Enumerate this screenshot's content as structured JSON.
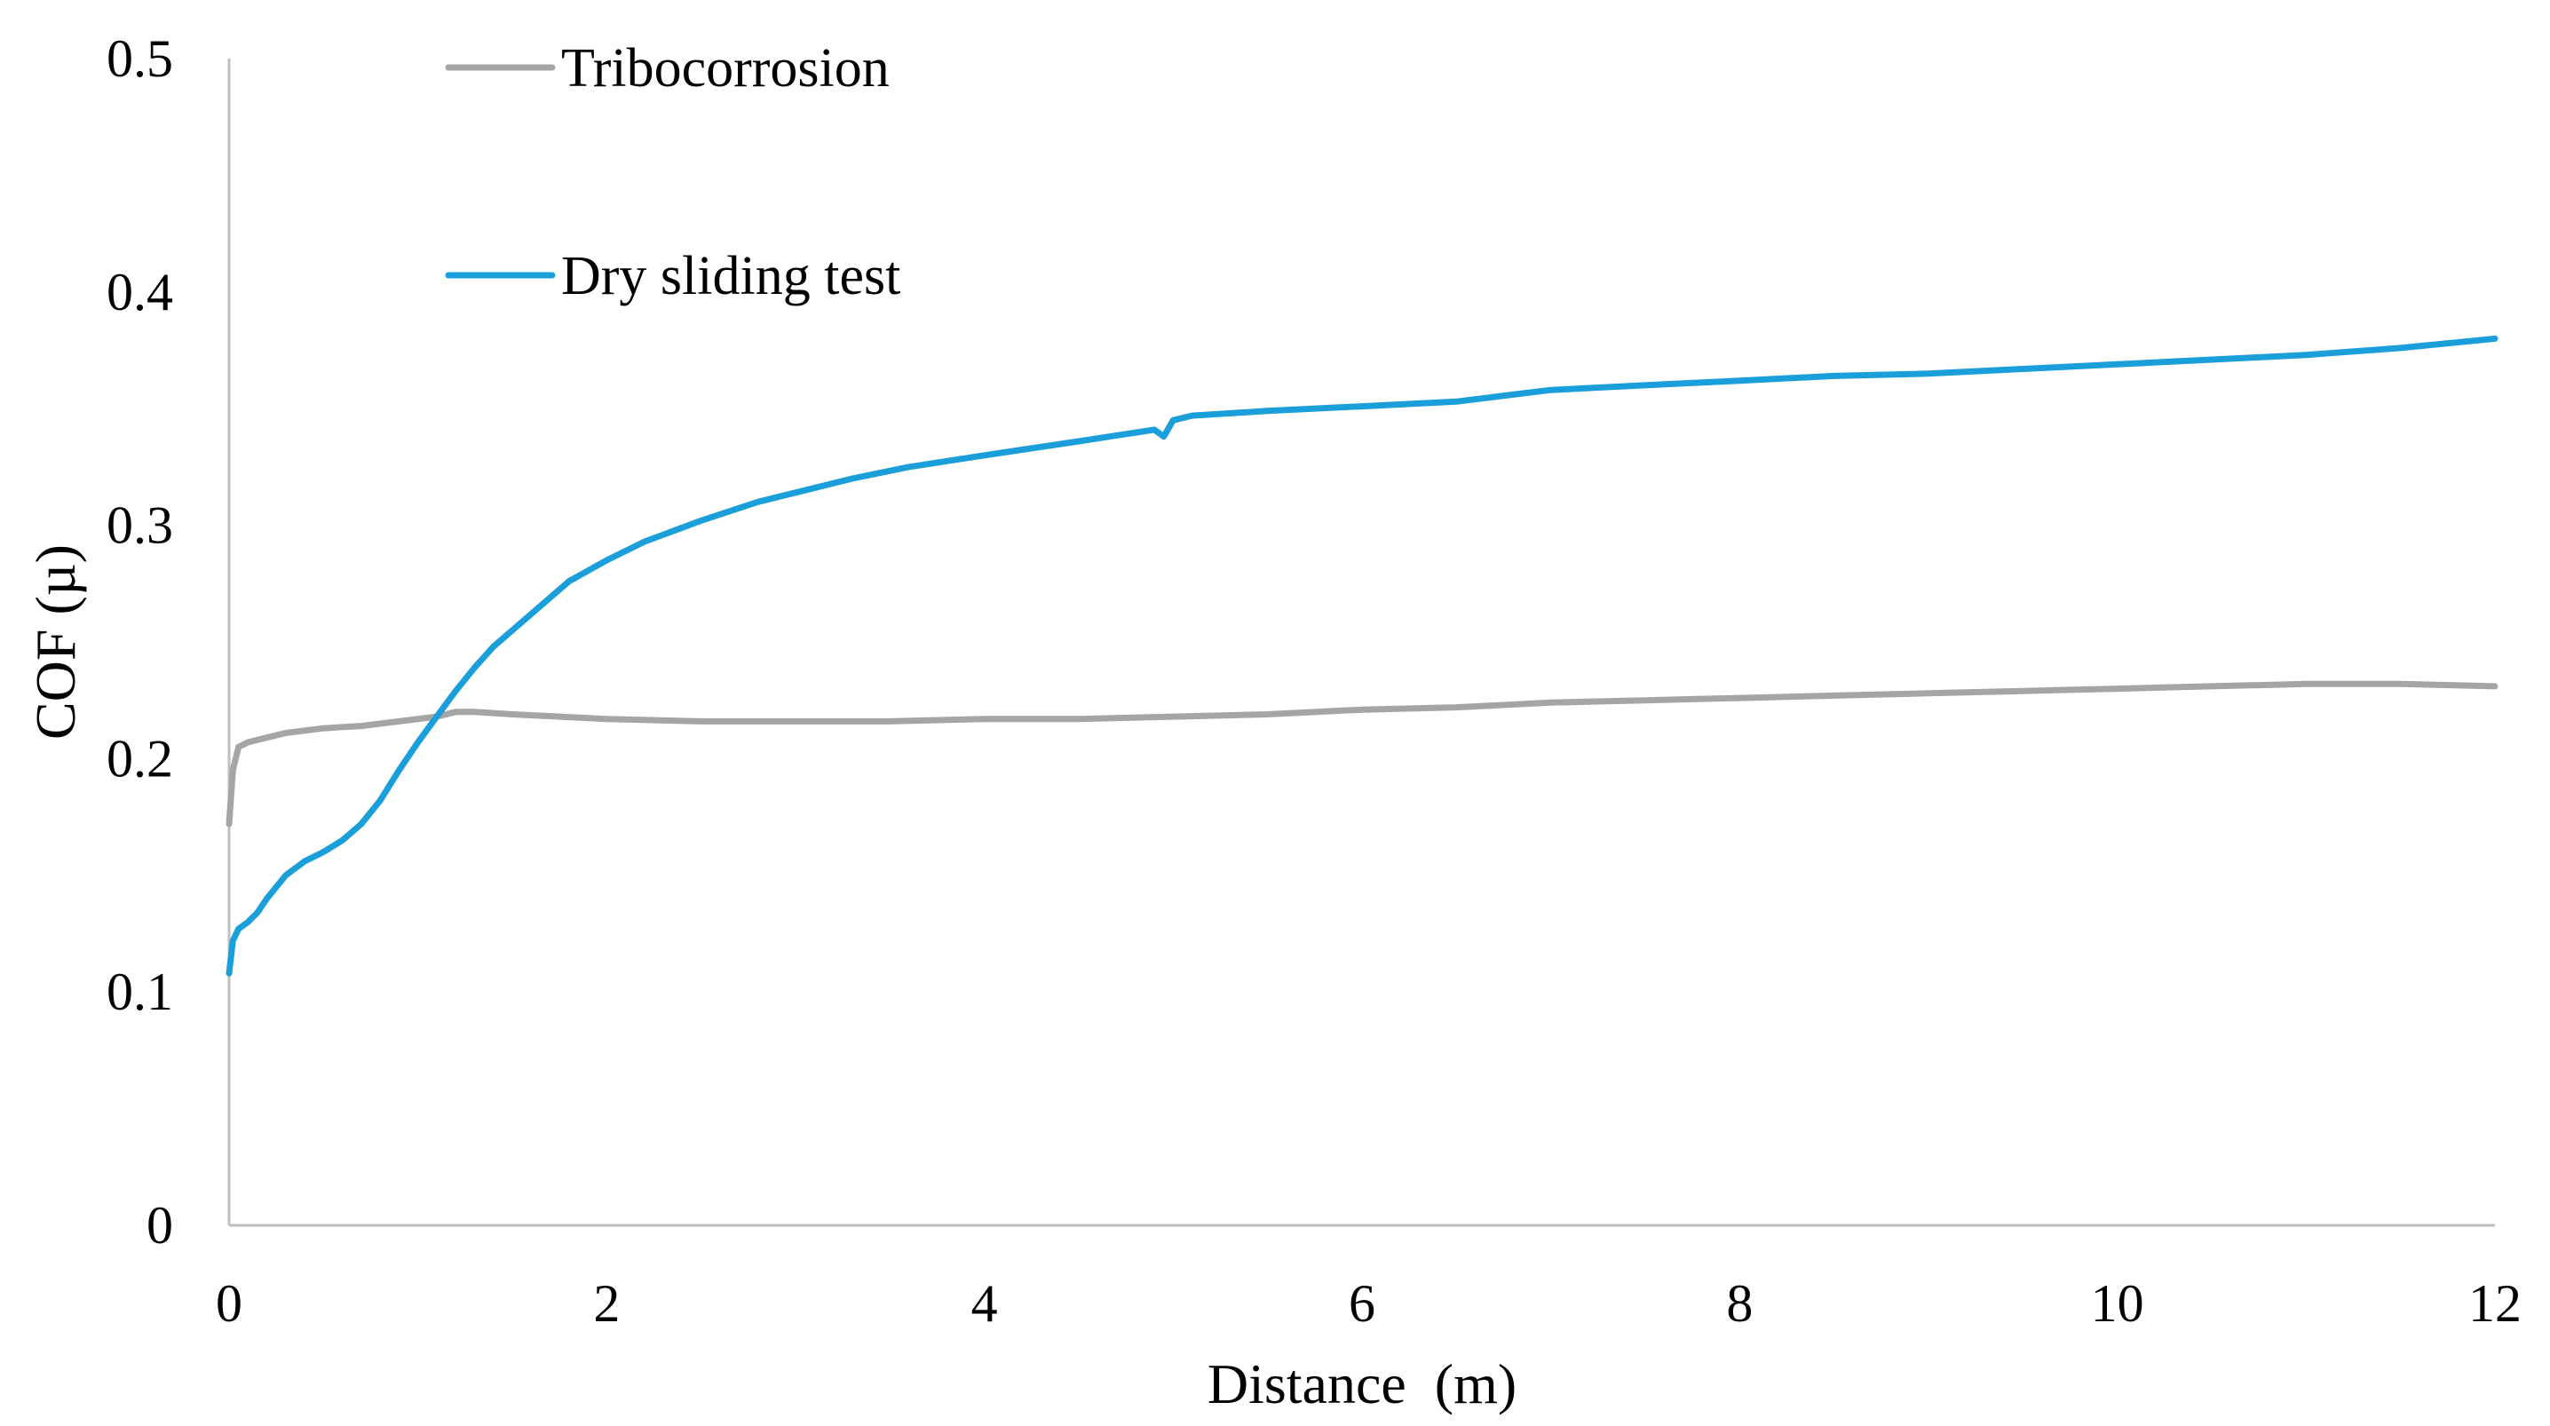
{
  "chart_data": {
    "type": "line",
    "title": "",
    "xlabel": "Distance  (m)",
    "ylabel": "COF (µ)",
    "xlim": [
      0,
      12
    ],
    "ylim": [
      0,
      0.5
    ],
    "x_ticks": [
      "0",
      "2",
      "4",
      "6",
      "8",
      "10",
      "12"
    ],
    "y_ticks": [
      "0",
      "0.1",
      "0.2",
      "0.3",
      "0.4",
      "0.5"
    ],
    "grid": false,
    "legend_position": "top-left",
    "series": [
      {
        "name": "Tribocorrosion",
        "color": "#a5a5a5",
        "x": [
          0,
          0.02,
          0.05,
          0.1,
          0.2,
          0.3,
          0.5,
          0.7,
          0.9,
          1.1,
          1.2,
          1.3,
          1.5,
          2.0,
          2.5,
          3.0,
          3.5,
          4.0,
          4.5,
          5.0,
          5.5,
          6.0,
          6.5,
          7.0,
          7.5,
          8.0,
          8.5,
          9.0,
          9.5,
          10.0,
          10.5,
          11.0,
          11.5,
          12.0
        ],
        "y": [
          0.172,
          0.195,
          0.205,
          0.207,
          0.209,
          0.211,
          0.213,
          0.214,
          0.216,
          0.218,
          0.22,
          0.22,
          0.219,
          0.217,
          0.216,
          0.216,
          0.216,
          0.217,
          0.217,
          0.218,
          0.219,
          0.221,
          0.222,
          0.224,
          0.225,
          0.226,
          0.227,
          0.228,
          0.229,
          0.23,
          0.231,
          0.232,
          0.232,
          0.231
        ]
      },
      {
        "name": "Dry sliding test",
        "color": "#1a9fdb",
        "x": [
          0,
          0.02,
          0.05,
          0.1,
          0.15,
          0.2,
          0.3,
          0.4,
          0.5,
          0.6,
          0.7,
          0.8,
          0.9,
          1.0,
          1.1,
          1.2,
          1.3,
          1.4,
          1.5,
          1.6,
          1.8,
          2.0,
          2.2,
          2.5,
          2.8,
          3.0,
          3.3,
          3.6,
          4.0,
          4.5,
          4.9,
          4.95,
          5.0,
          5.1,
          5.5,
          6.0,
          6.5,
          6.8,
          7.0,
          7.5,
          8.0,
          8.5,
          9.0,
          9.5,
          10.0,
          10.5,
          11.0,
          11.5,
          12.0
        ],
        "y": [
          0.108,
          0.122,
          0.127,
          0.13,
          0.134,
          0.14,
          0.15,
          0.156,
          0.16,
          0.165,
          0.172,
          0.182,
          0.195,
          0.207,
          0.218,
          0.229,
          0.239,
          0.248,
          0.255,
          0.262,
          0.276,
          0.285,
          0.293,
          0.302,
          0.31,
          0.314,
          0.32,
          0.325,
          0.33,
          0.336,
          0.341,
          0.338,
          0.345,
          0.347,
          0.349,
          0.351,
          0.353,
          0.356,
          0.358,
          0.36,
          0.362,
          0.364,
          0.365,
          0.367,
          0.369,
          0.371,
          0.373,
          0.376,
          0.38
        ]
      }
    ]
  }
}
